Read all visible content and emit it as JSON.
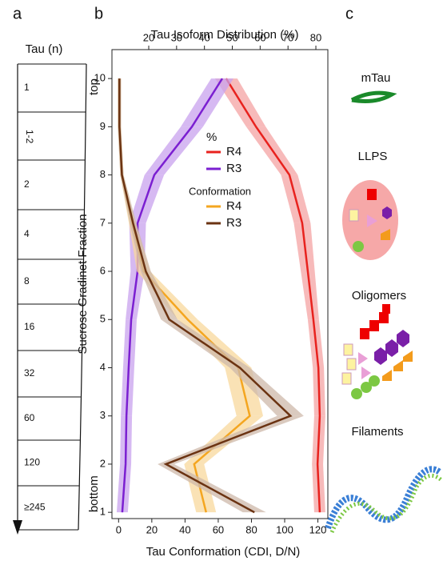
{
  "panel_labels": [
    "a",
    "b",
    "c"
  ],
  "tube": {
    "title": "Tau (n)",
    "sections": [
      "1",
      "1-2",
      "2",
      "4",
      "8",
      "16",
      "32",
      "60",
      "120",
      "≥245"
    ]
  },
  "schematic": {
    "labels": [
      "mTau",
      "LLPS",
      "Oligomers",
      "Filaments"
    ]
  },
  "chart_data": {
    "type": "line",
    "orientation": "horizontal",
    "title": "Tau Isoform Distribution (%)",
    "xlabel": "Tau Conformation (CDI, D/N)",
    "ylabel": "Sucrose Gradinet Fraction",
    "y": [
      1,
      2,
      3,
      4,
      5,
      6,
      7,
      8,
      9,
      10
    ],
    "y_end_labels": [
      {
        "value": 10,
        "label": "top"
      },
      {
        "value": 1,
        "label": "bottom"
      }
    ],
    "ylim": [
      0.87,
      10.6
    ],
    "yticks": [
      1,
      2,
      3,
      4,
      5,
      6,
      7,
      8,
      9,
      10
    ],
    "xlim": [
      -4,
      126
    ],
    "xticks": [
      0,
      20,
      40,
      60,
      80,
      100,
      120
    ],
    "x2lim": [
      6.8,
      84.3
    ],
    "x2ticks": [
      20,
      30,
      40,
      50,
      60,
      70,
      80
    ],
    "legend_titles": [
      "%",
      "Conformation"
    ],
    "series": [
      {
        "name": "R4",
        "axis": "x2",
        "color": "#e8221e",
        "band_color": "#f4a3a3",
        "values": [
          81.4,
          80.6,
          81.4,
          80.9,
          79.1,
          77.1,
          75.1,
          70.5,
          58.5,
          47.8
        ],
        "errors": [
          2,
          2,
          2,
          2,
          2,
          2.5,
          3,
          3,
          3.5,
          4
        ]
      },
      {
        "name": "R3",
        "axis": "x2",
        "color": "#7b1fd1",
        "band_color": "#c8a2ee",
        "values": [
          10.5,
          11.7,
          12,
          12.8,
          13.7,
          16,
          16,
          22,
          35.5,
          46.4
        ],
        "errors": [
          2,
          2,
          2,
          2,
          2,
          2.5,
          3,
          3.5,
          4,
          4
        ]
      },
      {
        "name": "R4",
        "color": "#f4a620",
        "band_color": "#f8d89c",
        "values": [
          52.7,
          45.5,
          79,
          72,
          41.6,
          15,
          8.2,
          2,
          0.5,
          0.5
        ],
        "errors": [
          6,
          6,
          8,
          8,
          6,
          4,
          2,
          1,
          1,
          1
        ]
      },
      {
        "name": "R3",
        "color": "#6b3312",
        "band_color": "#cdb8aa",
        "values": [
          81.8,
          28.5,
          103.5,
          73,
          30.5,
          16.4,
          8.7,
          2,
          0.5,
          0.5
        ],
        "errors": [
          7,
          5,
          8,
          6,
          5,
          3,
          2,
          1,
          1,
          1
        ]
      }
    ]
  }
}
